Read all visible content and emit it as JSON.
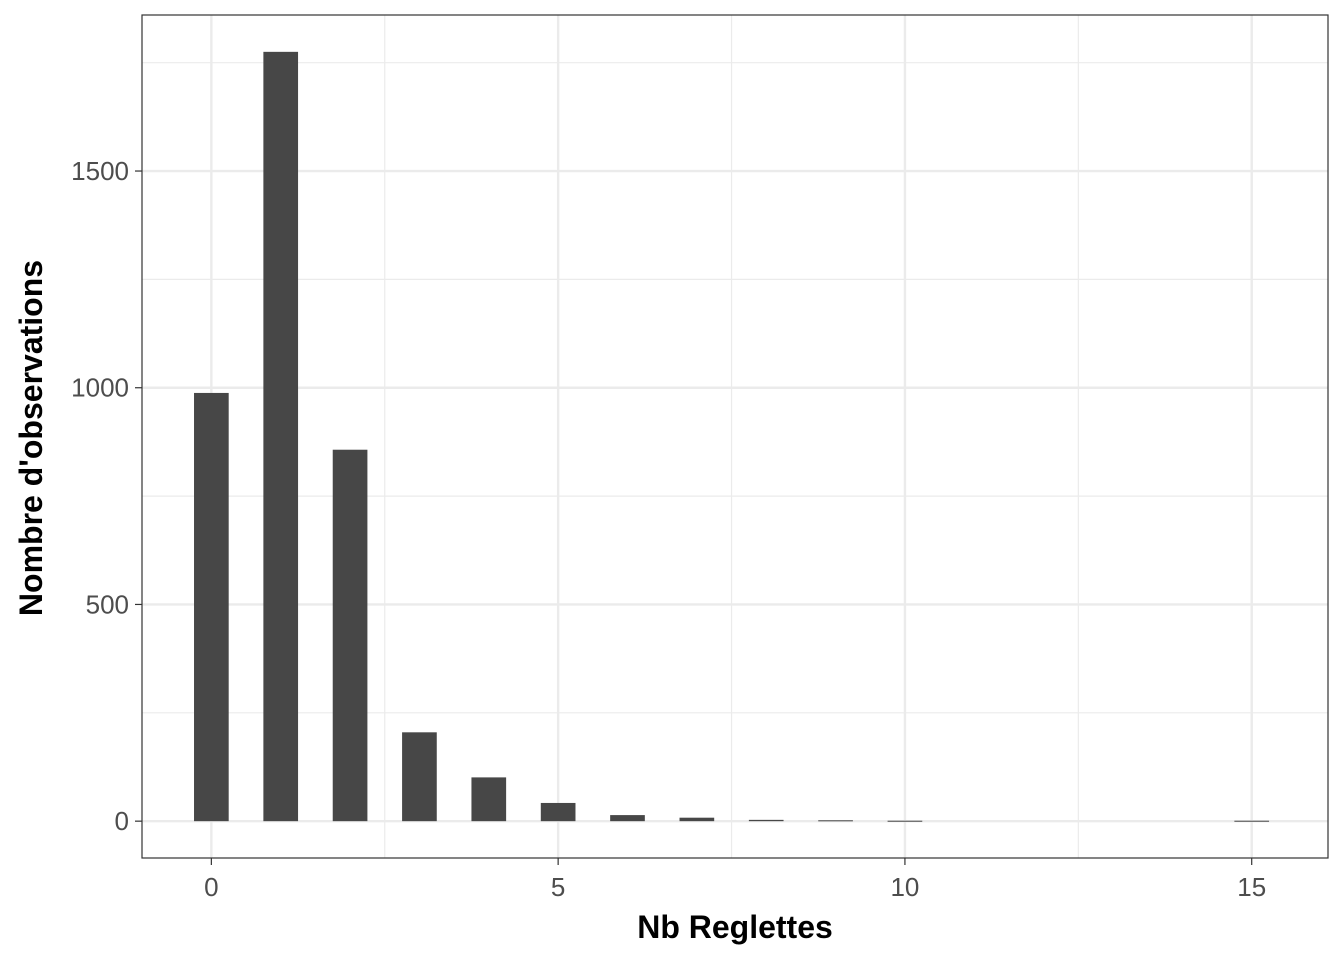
{
  "chart_data": {
    "type": "bar",
    "xlabel": "Nb Reglettes",
    "ylabel": "Nombre d'observations",
    "x": [
      0,
      1,
      2,
      3,
      4,
      5,
      6,
      7,
      8,
      9,
      10,
      15
    ],
    "values": [
      988,
      1775,
      857,
      205,
      101,
      42,
      14,
      8,
      3,
      2,
      1,
      1
    ],
    "xlim": [
      -1,
      16.1
    ],
    "ylim": [
      -85,
      1860
    ],
    "xticks": [
      0,
      5,
      10,
      15
    ],
    "yticks": [
      0,
      500,
      1000,
      1500
    ],
    "grid": true,
    "bar_color": "#474747",
    "grid_color": "#ebebeb",
    "panel_border_color": "#333333"
  }
}
